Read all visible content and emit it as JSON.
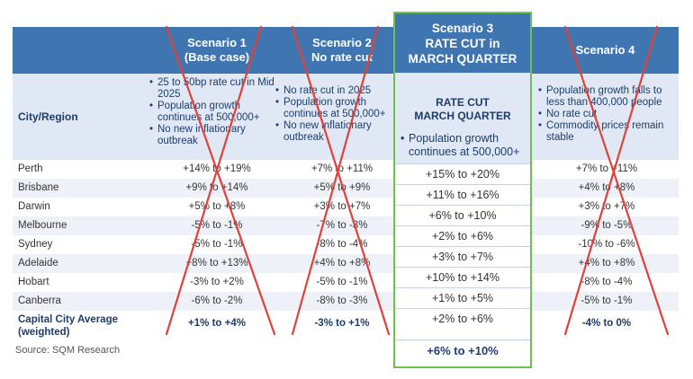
{
  "header": {
    "city_region": "City/Region",
    "s1_line1": "Scenario 1",
    "s1_line2": "(Base case)",
    "s2_line1": "Scenario 2",
    "s2_line2": "No rate cut",
    "s3_line1": "Scenario 3",
    "s3_line2": "RATE CUT in",
    "s3_line3": "MARCH QUARTER",
    "s4_line1": "Scenario 4"
  },
  "descriptions": {
    "s1": [
      "25 to 50bp rate cut in Mid 2025",
      "Population growth continues at 500,000+",
      "No new inflationary outbreak"
    ],
    "s2": [
      "No rate cut in 2025",
      "Population growth continues at 500,000+",
      "No new inflationary outbreak"
    ],
    "s3_title_line1": "RATE CUT",
    "s3_title_line2": "MARCH QUARTER",
    "s3_bullet": "Population growth continues at 500,000+",
    "s4": [
      "Population growth falls to less than 400,000 people",
      "No rate cut",
      "Commodity prices remain stable"
    ]
  },
  "rows": [
    {
      "city": "Perth",
      "s1": "+14% to +19%",
      "s2": "+7% to +11%",
      "s4": "+7% to +11%"
    },
    {
      "city": "Brisbane",
      "s1": "+9% to +14%",
      "s2": "+5% to +9%",
      "s4": "+4% to +8%"
    },
    {
      "city": "Darwin",
      "s1": "+5% to +8%",
      "s2": "+3% to +7%",
      "s4": "+3% to +7%"
    },
    {
      "city": "Melbourne",
      "s1": "-5% to -1%",
      "s2": "-7% to -3%",
      "s4": "-9% to -5%"
    },
    {
      "city": "Sydney",
      "s1": "-5% to -1%",
      "s2": "-8% to -4%",
      "s4": "-10% to -6%"
    },
    {
      "city": "Adelaide",
      "s1": "+8% to +13%",
      "s2": "+4% to +8%",
      "s4": "+4% to +8%"
    },
    {
      "city": "Hobart",
      "s1": "-3% to +2%",
      "s2": "-5% to -1%",
      "s4": "-8% to -4%"
    },
    {
      "city": "Canberra",
      "s1": "-6% to -2%",
      "s2": "-8% to -3%",
      "s4": "-5% to -1%"
    }
  ],
  "average": {
    "city_line1": "Capital City Average",
    "city_line2": "(weighted)",
    "s1": "+1% to +4%",
    "s2": "-3% to +1%",
    "s4": "-4% to 0%"
  },
  "scenario3_values": [
    "+15% to +20%",
    "+11% to +16%",
    "+6% to +10%",
    "+2% to +6%",
    "+3% to +7%",
    "+10% to +14%",
    "+1% to +5%",
    "+2% to +6%"
  ],
  "scenario3_average": "+6% to +10%",
  "source": "Source: SQM Research",
  "colors": {
    "header_blue": "#3f75b0",
    "highlight_green": "#6cc24a",
    "cross_red": "#e0413a"
  }
}
